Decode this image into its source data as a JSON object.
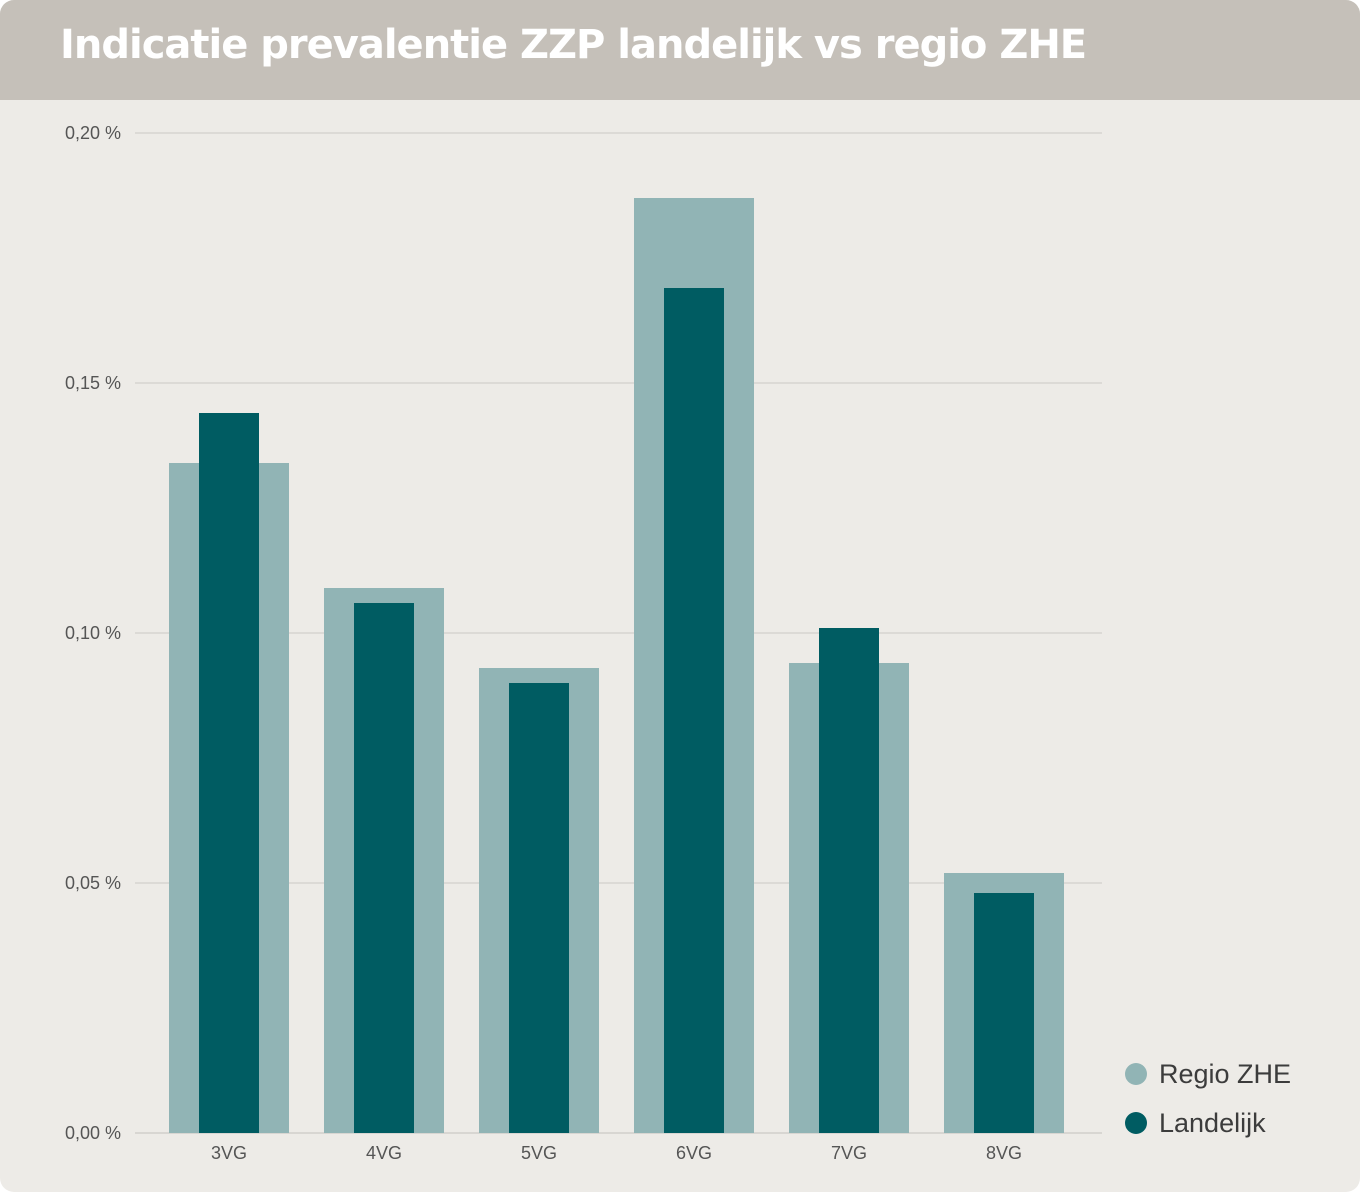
{
  "header": {
    "title": "Indicatie prevalentie ZZP landelijk vs regio ZHE"
  },
  "colors": {
    "background": "#edebe7",
    "header_background": "#c5c0b9",
    "regio": "#91b4b5",
    "landelijk": "#005c62",
    "grid": "#d6d4d0"
  },
  "legend": {
    "items": [
      {
        "label": "Regio ZHE",
        "color": "#91b4b5"
      },
      {
        "label": "Landelijk",
        "color": "#005c62"
      }
    ],
    "position": "bottom-right"
  },
  "chart_data": {
    "type": "bar",
    "title": "Indicatie prevalentie ZZP landelijk vs regio ZHE",
    "categories": [
      "3VG",
      "4VG",
      "5VG",
      "6VG",
      "7VG",
      "8VG"
    ],
    "series": [
      {
        "name": "Regio ZHE",
        "values": [
          0.134,
          0.109,
          0.093,
          0.187,
          0.094,
          0.052
        ]
      },
      {
        "name": "Landelijk",
        "values": [
          0.144,
          0.106,
          0.09,
          0.169,
          0.101,
          0.048
        ]
      }
    ],
    "ylim": [
      0,
      0.2
    ],
    "yticks": [
      0,
      0.05,
      0.1,
      0.15,
      0.2
    ],
    "ytick_labels": [
      "0,00 %",
      "0,05 %",
      "0,10 %",
      "0,15 %",
      "0,20 %"
    ],
    "grid": true,
    "overlapping_bars": true
  }
}
